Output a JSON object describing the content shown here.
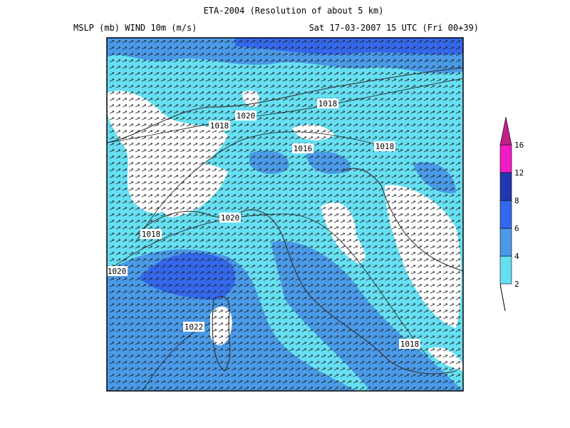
{
  "header": {
    "title": "ETA-2004 (Resolution of about 5 km)",
    "fields": "MSLP (mb)  WIND 10m (m/s)",
    "valid_time": "Sat 17-03-2007 15 UTC (Fri 00+39)"
  },
  "colorbar": {
    "levels": [
      2,
      4,
      6,
      8,
      12,
      16
    ],
    "colors": [
      "#66dff2",
      "#4a9ae8",
      "#3468ec",
      "#2238b0",
      "#f01cc4",
      "#c02088"
    ]
  },
  "isobar_labels": [
    "1020",
    "1018",
    "1018",
    "1016",
    "1018",
    "1020",
    "1018",
    "1020",
    "1022",
    "1018"
  ]
}
